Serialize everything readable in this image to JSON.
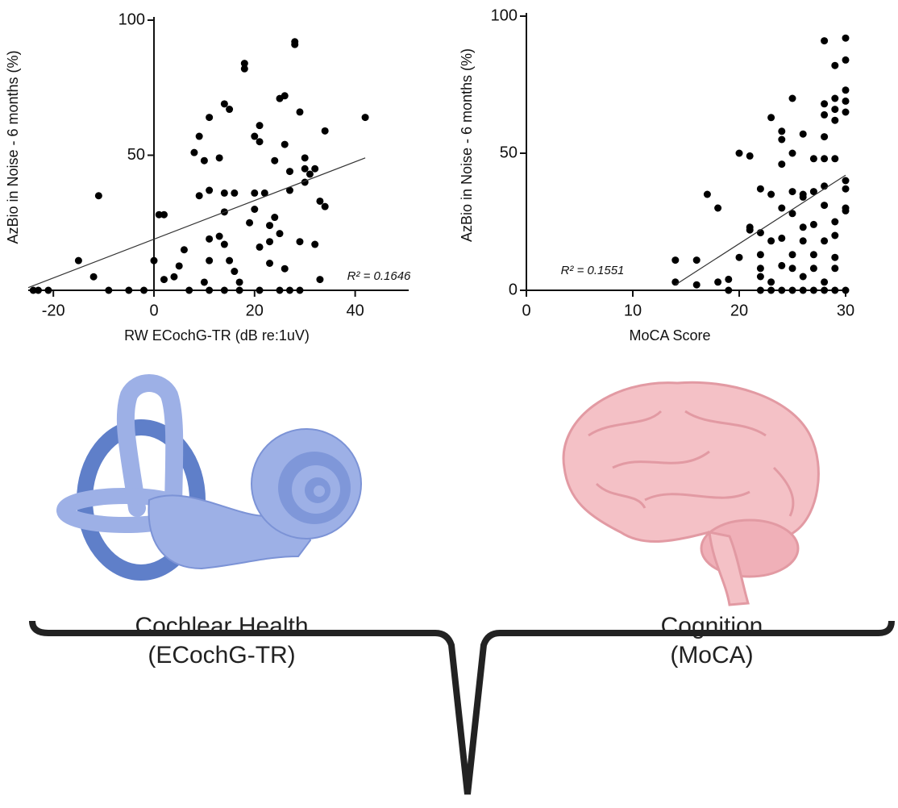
{
  "chart_data": [
    {
      "type": "scatter",
      "color": "#000000",
      "xlabel": "RW ECochG-TR (dB re:1uV)",
      "ylabel": "AzBio in Noise - 6 months (%)",
      "annotation": "R² = 0.1646",
      "xlim": [
        -25,
        50
      ],
      "ylim": [
        0,
        100
      ],
      "xticks": [
        -20,
        0,
        20,
        40
      ],
      "yticks": [
        50,
        100
      ],
      "trend": {
        "x": [
          -25,
          42
        ],
        "y": [
          1,
          49
        ]
      },
      "x": [
        -24,
        -23,
        -21,
        -11,
        -15,
        -12,
        -9,
        -5,
        -2,
        1,
        2,
        0,
        2,
        4,
        5,
        7,
        6,
        8,
        9,
        10,
        9,
        10,
        11,
        11,
        11,
        11,
        13,
        13,
        14,
        14,
        14,
        14,
        15,
        16,
        15,
        16,
        17,
        18,
        18,
        19,
        20,
        20,
        20,
        21,
        21,
        21,
        21,
        22,
        23,
        23,
        23,
        24,
        24,
        25,
        25,
        26,
        26,
        26,
        27,
        27,
        28,
        28,
        27,
        29,
        29,
        30,
        30,
        30,
        31,
        32,
        33,
        32,
        33,
        34,
        34,
        29,
        25,
        17,
        14,
        11,
        42
      ],
      "y": [
        0,
        0,
        0,
        35,
        11,
        5,
        0,
        0,
        0,
        28,
        28,
        11,
        4,
        5,
        9,
        0,
        15,
        51,
        57,
        48,
        35,
        3,
        11,
        19,
        37,
        64,
        20,
        49,
        69,
        29,
        36,
        17,
        67,
        36,
        11,
        7,
        3,
        82,
        84,
        25,
        36,
        57,
        30,
        55,
        61,
        16,
        0,
        36,
        24,
        10,
        18,
        48,
        27,
        21,
        71,
        72,
        54,
        8,
        37,
        44,
        92,
        91,
        0,
        18,
        66,
        45,
        40,
        49,
        43,
        17,
        4,
        45,
        33,
        59,
        31,
        0,
        0,
        0,
        0,
        0,
        64
      ]
    },
    {
      "type": "scatter",
      "color": "#000000",
      "xlabel": "MoCA Score",
      "ylabel": "AzBio in Noise - 6 months (%)",
      "annotation": "R² = 0.1551",
      "xlim": [
        0,
        30
      ],
      "ylim": [
        0,
        100
      ],
      "xticks": [
        0,
        10,
        20,
        30
      ],
      "yticks": [
        0,
        50,
        100
      ],
      "trend": {
        "x": [
          14,
          30
        ],
        "y": [
          2,
          42
        ]
      },
      "x": [
        14,
        14,
        16,
        16,
        17,
        18,
        18,
        19,
        19,
        20,
        20,
        21,
        21,
        21,
        22,
        22,
        22,
        22,
        22,
        22,
        23,
        23,
        23,
        23,
        23,
        24,
        24,
        24,
        24,
        24,
        24,
        24,
        25,
        25,
        25,
        25,
        25,
        25,
        25,
        26,
        26,
        26,
        26,
        26,
        26,
        26,
        27,
        27,
        27,
        27,
        27,
        27,
        28,
        28,
        28,
        28,
        28,
        28,
        28,
        28,
        28,
        28,
        29,
        29,
        29,
        29,
        29,
        29,
        29,
        29,
        29,
        29,
        30,
        30,
        30,
        30,
        30,
        30,
        30,
        30,
        30,
        30
      ],
      "y": [
        11,
        3,
        11,
        2,
        35,
        30,
        3,
        4,
        0,
        12,
        50,
        49,
        23,
        22,
        21,
        37,
        13,
        8,
        5,
        0,
        63,
        35,
        18,
        3,
        0,
        58,
        55,
        46,
        30,
        19,
        9,
        0,
        70,
        50,
        36,
        28,
        13,
        8,
        0,
        57,
        35,
        34,
        23,
        18,
        5,
        0,
        48,
        36,
        24,
        13,
        8,
        0,
        91,
        68,
        64,
        56,
        48,
        38,
        31,
        18,
        3,
        0,
        82,
        70,
        66,
        62,
        48,
        25,
        20,
        12,
        8,
        0,
        92,
        84,
        73,
        69,
        65,
        40,
        37,
        30,
        29,
        0
      ]
    }
  ],
  "illustrations": [
    {
      "label": [
        "Cochlear Health",
        "(ECochG-TR)"
      ]
    },
    {
      "label": [
        "Cognition",
        "(MoCA)"
      ]
    }
  ]
}
